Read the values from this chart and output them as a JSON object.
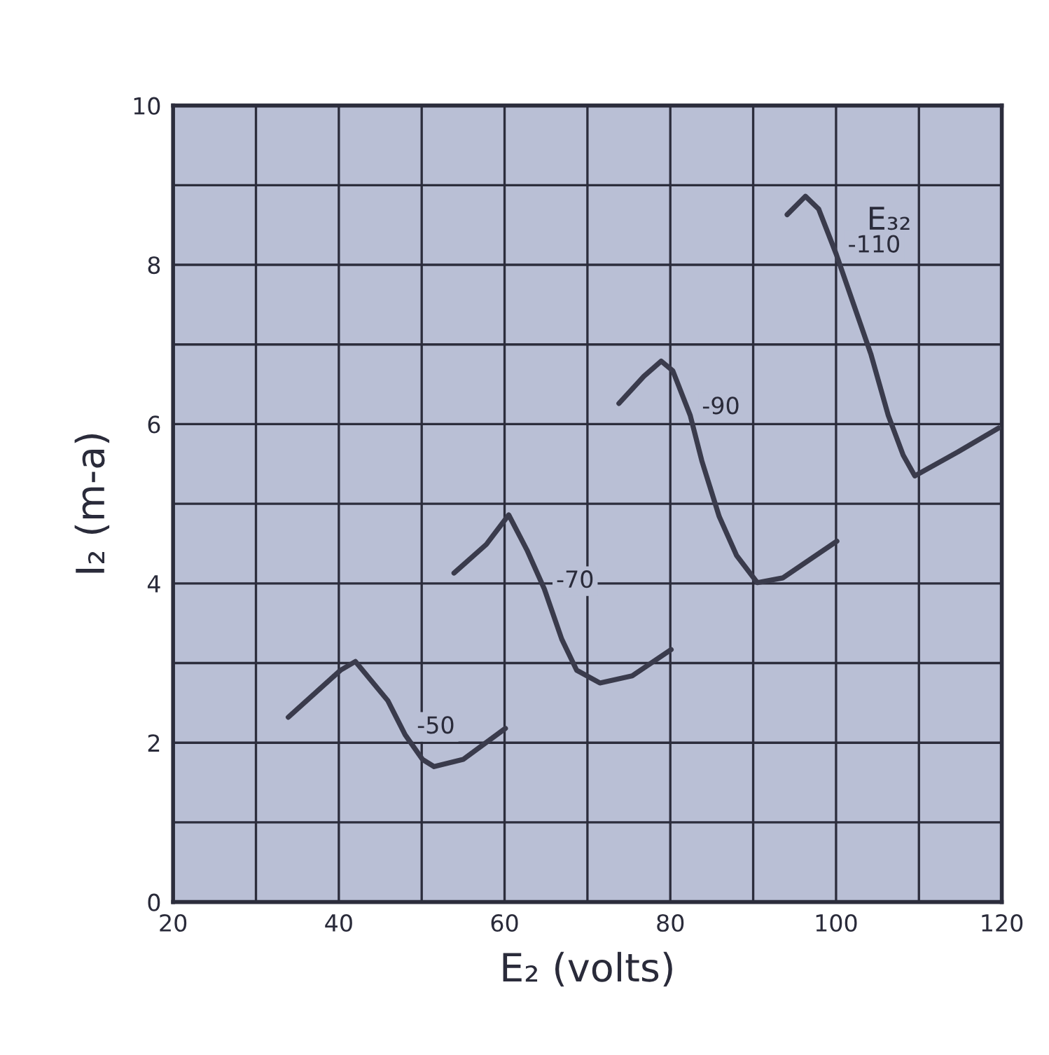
{
  "chart_data": {
    "type": "line",
    "xlabel": "E₂ (volts)",
    "ylabel": "I₂ (m-a)",
    "legend_title": "E₃₂",
    "xlim": [
      20,
      120
    ],
    "ylim": [
      0,
      10
    ],
    "xticks": [
      20,
      {
        "value": 30,
        "label": null
      },
      40,
      {
        "value": 50,
        "label": null
      },
      60,
      {
        "value": 70,
        "label": null
      },
      80,
      {
        "value": 90,
        "label": null
      },
      100,
      {
        "value": 110,
        "label": null
      },
      120
    ],
    "yticks": [
      0,
      {
        "value": 1,
        "label": null
      },
      2,
      {
        "value": 3,
        "label": null
      },
      4,
      {
        "value": 5,
        "label": null
      },
      6,
      {
        "value": 7,
        "label": null
      },
      8,
      {
        "value": 9,
        "label": null
      },
      10
    ],
    "grid": true,
    "marker": "none",
    "line_style": "solid",
    "series": [
      {
        "name": "-50",
        "color": "#3a3b4c",
        "x": [
          33.9,
          40.2,
          42.0,
          45.9,
          48.0,
          50.1,
          51.5,
          55.0,
          60.1
        ],
        "values": [
          2.32,
          2.91,
          3.02,
          2.53,
          2.1,
          1.79,
          1.7,
          1.79,
          2.18
        ]
      },
      {
        "name": "-70",
        "color": "#3a3b4c",
        "x": [
          53.9,
          57.8,
          60.5,
          62.7,
          64.8,
          66.9,
          68.7,
          71.5,
          75.4,
          80.1
        ],
        "values": [
          4.13,
          4.49,
          4.86,
          4.42,
          3.93,
          3.3,
          2.91,
          2.75,
          2.84,
          3.17
        ]
      },
      {
        "name": "-90",
        "color": "#3a3b4c",
        "x": [
          73.8,
          76.8,
          78.9,
          80.3,
          82.4,
          83.8,
          85.9,
          88.0,
          90.5,
          93.6,
          100.1
        ],
        "values": [
          6.26,
          6.6,
          6.79,
          6.67,
          6.11,
          5.54,
          4.84,
          4.35,
          4.01,
          4.07,
          4.53
        ]
      },
      {
        "name": "-110",
        "color": "#3a3b4c",
        "x": [
          94.1,
          96.3,
          97.9,
          100.0,
          102.1,
          104.2,
          106.3,
          108.1,
          109.5,
          114.7,
          119.6
        ],
        "values": [
          8.63,
          8.86,
          8.7,
          8.14,
          7.51,
          6.88,
          6.11,
          5.61,
          5.35,
          5.65,
          5.95
        ]
      }
    ]
  }
}
